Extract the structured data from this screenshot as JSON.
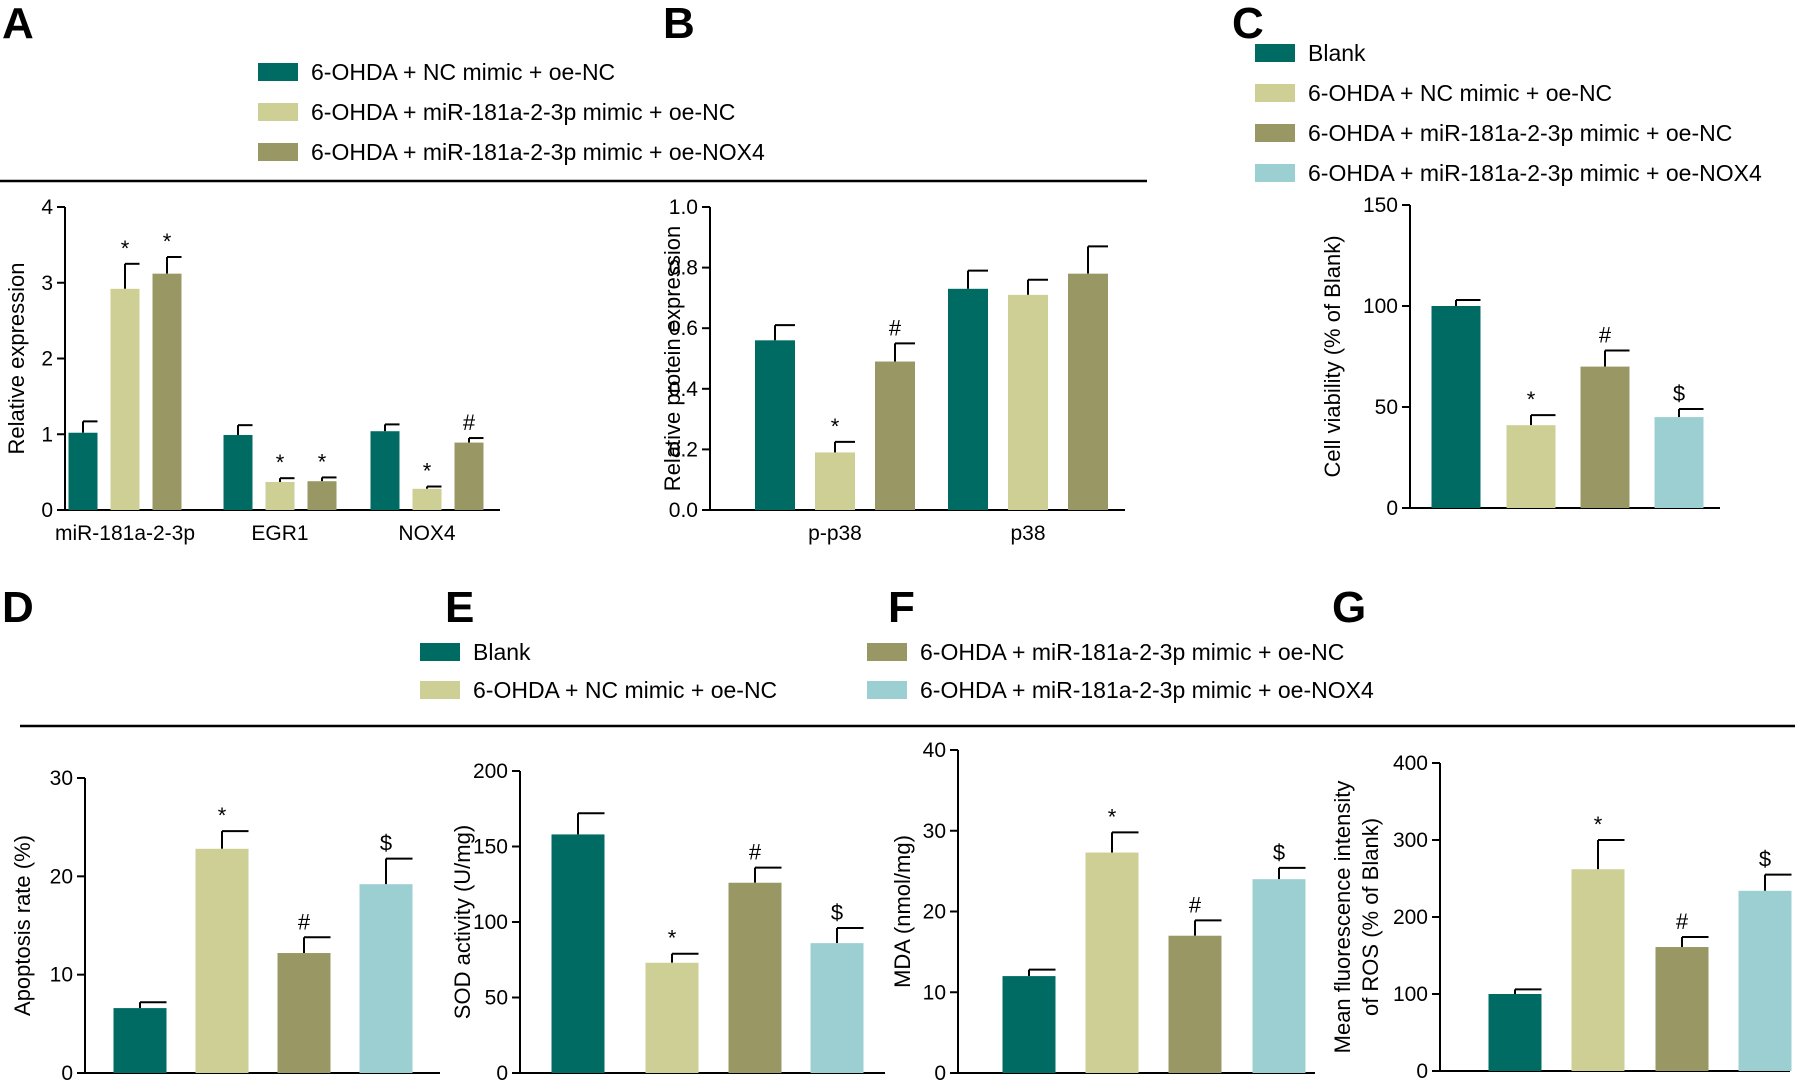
{
  "colors": {
    "blank": "#006b63",
    "nc": "#cdcf95",
    "mimic_oe_nc": "#999864",
    "mimic_oe_nox4": "#9ccfd1"
  },
  "legend_top": {
    "A": [
      {
        "label": "6-OHDA + NC mimic + oe-NC",
        "color_key": "blank"
      },
      {
        "label": "6-OHDA + miR-181a-2-3p mimic + oe-NC",
        "color_key": "nc"
      },
      {
        "label": "6-OHDA + miR-181a-2-3p mimic + oe-NOX4",
        "color_key": "mimic_oe_nc"
      }
    ],
    "C": [
      {
        "label": "Blank",
        "color_key": "blank"
      },
      {
        "label": "6-OHDA + NC mimic + oe-NC",
        "color_key": "nc"
      },
      {
        "label": "6-OHDA + miR-181a-2-3p mimic + oe-NC",
        "color_key": "mimic_oe_nc"
      },
      {
        "label": "6-OHDA + miR-181a-2-3p mimic + oe-NOX4",
        "color_key": "mimic_oe_nox4"
      }
    ]
  },
  "legend_bottom": [
    {
      "label": "Blank",
      "color_key": "blank"
    },
    {
      "label": "6-OHDA + NC mimic + oe-NC",
      "color_key": "nc"
    },
    {
      "label": "6-OHDA + miR-181a-2-3p mimic + oe-NC",
      "color_key": "mimic_oe_nc"
    },
    {
      "label": "6-OHDA + miR-181a-2-3p mimic + oe-NOX4",
      "color_key": "mimic_oe_nox4"
    }
  ],
  "chart_data": [
    {
      "panel": "A",
      "type": "bar",
      "ylabel": "Relative expression",
      "ylim": [
        0,
        4
      ],
      "yticks": [
        "0",
        "1",
        "2",
        "3",
        "4"
      ],
      "categories": [
        "miR-181a-2-3p",
        "EGR1",
        "NOX4"
      ],
      "series": [
        {
          "color_key": "blank",
          "values": [
            1.02,
            0.99,
            1.04
          ],
          "errors": [
            0.15,
            0.13,
            0.09
          ],
          "marks": [
            "",
            "",
            ""
          ]
        },
        {
          "color_key": "nc",
          "values": [
            2.92,
            0.37,
            0.28
          ],
          "errors": [
            0.33,
            0.05,
            0.03
          ],
          "marks": [
            "*",
            "*",
            "*"
          ]
        },
        {
          "color_key": "mimic_oe_nc",
          "values": [
            3.12,
            0.38,
            0.89
          ],
          "errors": [
            0.22,
            0.05,
            0.06
          ],
          "marks": [
            "*",
            "*",
            "#"
          ]
        }
      ]
    },
    {
      "panel": "B",
      "type": "bar",
      "ylabel": "Relative protein expression",
      "ylim": [
        0,
        1.0
      ],
      "yticks": [
        "0.0",
        "0.2",
        "0.4",
        "0.6",
        "0.8",
        "1.0"
      ],
      "categories": [
        "p-p38",
        "p38"
      ],
      "series": [
        {
          "color_key": "blank",
          "values": [
            0.56,
            0.73
          ],
          "errors": [
            0.05,
            0.06
          ],
          "marks": [
            "",
            ""
          ]
        },
        {
          "color_key": "nc",
          "values": [
            0.19,
            0.71
          ],
          "errors": [
            0.035,
            0.05
          ],
          "marks": [
            "*",
            ""
          ]
        },
        {
          "color_key": "mimic_oe_nc",
          "values": [
            0.49,
            0.78
          ],
          "errors": [
            0.06,
            0.09
          ],
          "marks": [
            "#",
            ""
          ]
        }
      ]
    },
    {
      "panel": "C",
      "type": "bar",
      "ylabel": "Cell viability (% of Blank)",
      "ylim": [
        0,
        150
      ],
      "yticks": [
        "0",
        "50",
        "100",
        "150"
      ],
      "values": [
        100,
        41,
        70,
        45
      ],
      "errors": [
        3,
        5,
        8,
        4
      ],
      "marks": [
        "",
        "*",
        "#",
        "$"
      ]
    },
    {
      "panel": "D",
      "type": "bar",
      "ylabel": "Apoptosis rate (%)",
      "ylim": [
        0,
        30
      ],
      "yticks": [
        "0",
        "10",
        "20",
        "30"
      ],
      "values": [
        6.6,
        22.8,
        12.2,
        19.2
      ],
      "errors": [
        0.6,
        1.8,
        1.6,
        2.6
      ],
      "marks": [
        "",
        "*",
        "#",
        "$"
      ]
    },
    {
      "panel": "E",
      "type": "bar",
      "ylabel": "SOD activity (U/mg)",
      "ylim": [
        0,
        200
      ],
      "yticks": [
        "0",
        "50",
        "100",
        "150",
        "200"
      ],
      "values": [
        158,
        73,
        126,
        86
      ],
      "errors": [
        14,
        6,
        10,
        10
      ],
      "marks": [
        "",
        "*",
        "#",
        "$"
      ]
    },
    {
      "panel": "F",
      "type": "bar",
      "ylabel": "MDA (nmol/mg)",
      "ylim": [
        0,
        40
      ],
      "yticks": [
        "0",
        "10",
        "20",
        "30",
        "40"
      ],
      "values": [
        12,
        27.3,
        17,
        24
      ],
      "errors": [
        0.8,
        2.5,
        1.9,
        1.4
      ],
      "marks": [
        "",
        "*",
        "#",
        "$"
      ]
    },
    {
      "panel": "G",
      "type": "bar",
      "ylabel": [
        "Mean fluorescence intensity",
        "of ROS (% of Blank)"
      ],
      "ylim": [
        0,
        400
      ],
      "yticks": [
        "0",
        "100",
        "200",
        "300",
        "400"
      ],
      "values": [
        100,
        262,
        161,
        234
      ],
      "errors": [
        6,
        38,
        13,
        21
      ],
      "marks": [
        "",
        "*",
        "#",
        "$"
      ]
    }
  ]
}
